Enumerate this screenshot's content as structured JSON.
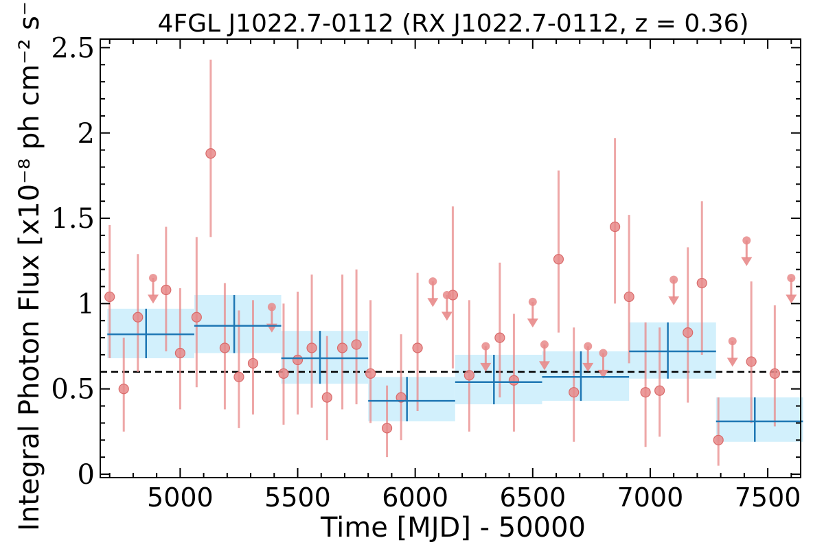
{
  "chart_data": {
    "type": "scatter",
    "title": "4FGL J1022.7-0112 (RX J1022.7-0112, z = 0.36)",
    "xlabel": "Time [MJD] - 50000",
    "ylabel": "Integral Photon Flux [x10⁻⁸ ph cm⁻² s⁻¹]",
    "xlim": [
      4660,
      7640
    ],
    "ylim": [
      -0.02,
      2.55
    ],
    "xticks": [
      5000,
      5500,
      6000,
      6500,
      7000,
      7500
    ],
    "xtick_labels": [
      "5000",
      "5500",
      "6000",
      "6500",
      "7000",
      "7500"
    ],
    "yticks": [
      0,
      0.5,
      1,
      1.5,
      2,
      2.5
    ],
    "ytick_labels": [
      "0",
      "0.5",
      "1",
      "1.5",
      "2",
      "2.5"
    ],
    "grid": false,
    "reference_line": 0.6,
    "colors": {
      "points": "#e88a8a",
      "bins_fill": "#cdeefc",
      "bins_line": "#1f77b4",
      "reference": "#000000"
    },
    "series": [
      {
        "kind": "measurements",
        "points": [
          {
            "x": 4700,
            "y": 1.04,
            "ylo": 0.68,
            "yhi": 1.46
          },
          {
            "x": 4760,
            "y": 0.5,
            "ylo": 0.25,
            "yhi": 0.8
          },
          {
            "x": 4820,
            "y": 0.92,
            "ylo": 0.6,
            "yhi": 1.29
          },
          {
            "x": 4940,
            "y": 1.08,
            "ylo": 0.72,
            "yhi": 1.45
          },
          {
            "x": 5000,
            "y": 0.71,
            "ylo": 0.38,
            "yhi": 1.09
          },
          {
            "x": 5070,
            "y": 0.92,
            "ylo": 0.51,
            "yhi": 1.39
          },
          {
            "x": 5130,
            "y": 1.88,
            "ylo": 1.39,
            "yhi": 2.43
          },
          {
            "x": 5190,
            "y": 0.74,
            "ylo": 0.38,
            "yhi": 1.12
          },
          {
            "x": 5250,
            "y": 0.57,
            "ylo": 0.27,
            "yhi": 0.96
          },
          {
            "x": 5310,
            "y": 0.65,
            "ylo": 0.35,
            "yhi": 1.02
          },
          {
            "x": 5440,
            "y": 0.59,
            "ylo": 0.29,
            "yhi": 1.0
          },
          {
            "x": 5500,
            "y": 0.67,
            "ylo": 0.35,
            "yhi": 1.07
          },
          {
            "x": 5560,
            "y": 0.74,
            "ylo": 0.39,
            "yhi": 1.17
          },
          {
            "x": 5625,
            "y": 0.45,
            "ylo": 0.2,
            "yhi": 0.81
          },
          {
            "x": 5690,
            "y": 0.74,
            "ylo": 0.38,
            "yhi": 1.17
          },
          {
            "x": 5750,
            "y": 0.76,
            "ylo": 0.41,
            "yhi": 1.2
          },
          {
            "x": 5810,
            "y": 0.59,
            "ylo": 0.3,
            "yhi": 1.02
          },
          {
            "x": 5880,
            "y": 0.27,
            "ylo": 0.1,
            "yhi": 0.52
          },
          {
            "x": 5940,
            "y": 0.45,
            "ylo": 0.2,
            "yhi": 0.82
          },
          {
            "x": 6010,
            "y": 0.74,
            "ylo": 0.37,
            "yhi": 1.18
          },
          {
            "x": 6160,
            "y": 1.05,
            "ylo": 0.62,
            "yhi": 1.57
          },
          {
            "x": 6230,
            "y": 0.58,
            "ylo": 0.25,
            "yhi": 1.02
          },
          {
            "x": 6360,
            "y": 0.8,
            "ylo": 0.45,
            "yhi": 1.24
          },
          {
            "x": 6420,
            "y": 0.55,
            "ylo": 0.25,
            "yhi": 0.94
          },
          {
            "x": 6610,
            "y": 1.26,
            "ylo": 0.83,
            "yhi": 1.78
          },
          {
            "x": 6675,
            "y": 0.48,
            "ylo": 0.19,
            "yhi": 0.86
          },
          {
            "x": 6850,
            "y": 1.45,
            "ylo": 1.0,
            "yhi": 1.97
          },
          {
            "x": 6910,
            "y": 1.04,
            "ylo": 0.65,
            "yhi": 1.52
          },
          {
            "x": 6980,
            "y": 0.48,
            "ylo": 0.16,
            "yhi": 0.89
          },
          {
            "x": 7040,
            "y": 0.49,
            "ylo": 0.22,
            "yhi": 0.86
          },
          {
            "x": 7160,
            "y": 0.83,
            "ylo": 0.42,
            "yhi": 1.33
          },
          {
            "x": 7220,
            "y": 1.12,
            "ylo": 0.7,
            "yhi": 1.6
          },
          {
            "x": 7290,
            "y": 0.2,
            "ylo": 0.05,
            "yhi": 0.45
          },
          {
            "x": 7430,
            "y": 0.66,
            "ylo": 0.3,
            "yhi": 1.13
          },
          {
            "x": 7530,
            "y": 0.59,
            "ylo": 0.28,
            "yhi": 0.99
          }
        ]
      },
      {
        "kind": "upper_limits",
        "points": [
          {
            "x": 4885,
            "y": 1.15
          },
          {
            "x": 5390,
            "y": 0.98
          },
          {
            "x": 6075,
            "y": 1.13
          },
          {
            "x": 6135,
            "y": 1.05
          },
          {
            "x": 6300,
            "y": 0.75
          },
          {
            "x": 6500,
            "y": 1.01
          },
          {
            "x": 6550,
            "y": 0.76
          },
          {
            "x": 6735,
            "y": 0.75
          },
          {
            "x": 6800,
            "y": 0.71
          },
          {
            "x": 7100,
            "y": 1.14
          },
          {
            "x": 7350,
            "y": 0.78
          },
          {
            "x": 7410,
            "y": 1.37
          },
          {
            "x": 7600,
            "y": 1.15
          }
        ]
      },
      {
        "kind": "binned",
        "bins": [
          {
            "x0": 4690,
            "x1": 5060,
            "xc": 4855,
            "y": 0.82,
            "ylo": 0.68,
            "yhi": 0.97
          },
          {
            "x0": 5060,
            "x1": 5430,
            "xc": 5230,
            "y": 0.87,
            "ylo": 0.71,
            "yhi": 1.05
          },
          {
            "x0": 5430,
            "x1": 5800,
            "xc": 5595,
            "y": 0.68,
            "ylo": 0.53,
            "yhi": 0.84
          },
          {
            "x0": 5800,
            "x1": 6170,
            "xc": 5965,
            "y": 0.43,
            "ylo": 0.31,
            "yhi": 0.57
          },
          {
            "x0": 6170,
            "x1": 6540,
            "xc": 6335,
            "y": 0.54,
            "ylo": 0.41,
            "yhi": 0.7
          },
          {
            "x0": 6540,
            "x1": 6910,
            "xc": 6705,
            "y": 0.57,
            "ylo": 0.43,
            "yhi": 0.72
          },
          {
            "x0": 6910,
            "x1": 7280,
            "xc": 7075,
            "y": 0.72,
            "ylo": 0.56,
            "yhi": 0.89
          },
          {
            "x0": 7280,
            "x1": 7650,
            "xc": 7445,
            "y": 0.31,
            "ylo": 0.19,
            "yhi": 0.45
          }
        ]
      }
    ]
  }
}
